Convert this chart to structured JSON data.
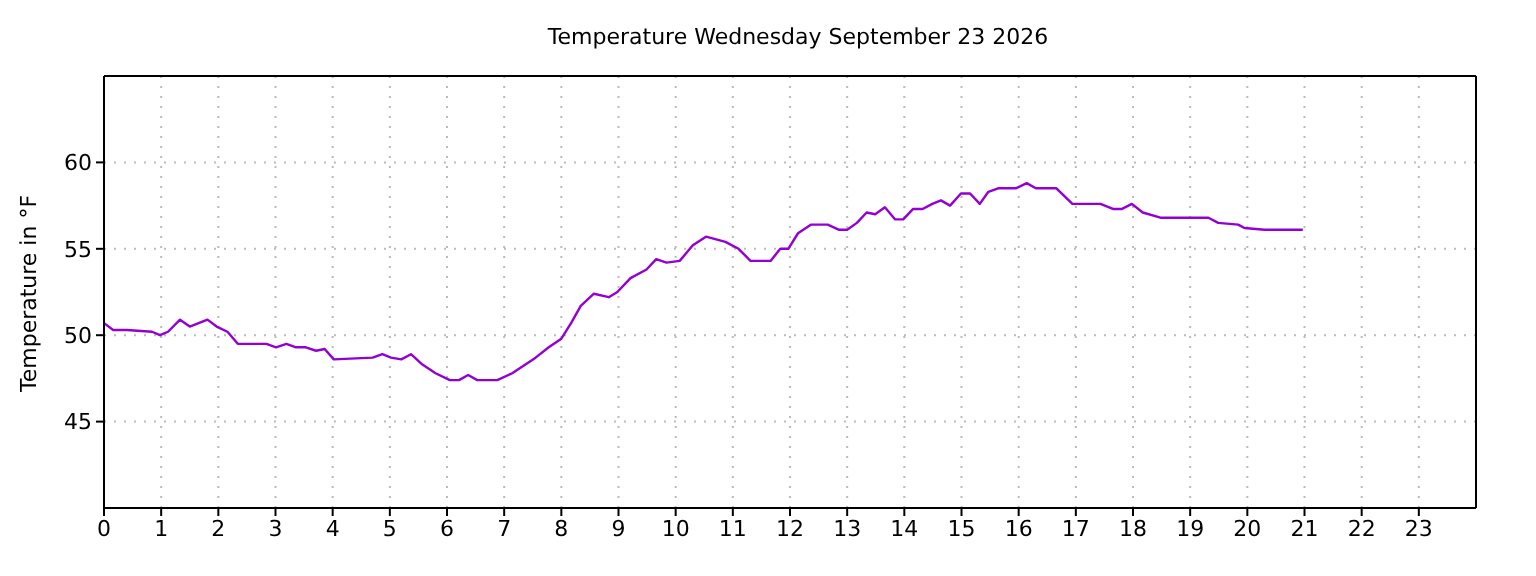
{
  "chart_data": {
    "type": "line",
    "title": "Temperature Wednesday September 23 2026",
    "ylabel": "Temperature in °F",
    "x": [
      0,
      0.16,
      0.4,
      0.84,
      0.98,
      1.12,
      1.33,
      1.5,
      1.81,
      1.97,
      2.16,
      2.34,
      2.84,
      3.01,
      3.19,
      3.36,
      3.53,
      3.71,
      3.86,
      4.02,
      4.7,
      4.87,
      5.02,
      5.2,
      5.37,
      5.57,
      5.8,
      6.05,
      6.21,
      6.37,
      6.53,
      6.88,
      7.14,
      7.55,
      7.78,
      8.0,
      8.17,
      8.34,
      8.57,
      8.83,
      8.98,
      9.21,
      9.49,
      9.66,
      9.84,
      10.07,
      10.3,
      10.53,
      10.87,
      11.1,
      11.31,
      11.66,
      11.83,
      11.97,
      12.14,
      12.37,
      12.66,
      12.86,
      13.0,
      13.17,
      13.34,
      13.49,
      13.66,
      13.84,
      13.98,
      14.15,
      14.32,
      14.49,
      14.64,
      14.8,
      14.99,
      15.15,
      15.32,
      15.47,
      15.64,
      15.95,
      16.14,
      16.3,
      16.66,
      16.94,
      17.43,
      17.66,
      17.8,
      17.98,
      18.17,
      18.48,
      19.32,
      19.49,
      19.84,
      19.95,
      20.3,
      20.97
    ],
    "series": [
      {
        "color": "#9400d3",
        "values": [
          50.7,
          50.3,
          50.3,
          50.2,
          50.0,
          50.2,
          50.9,
          50.5,
          50.9,
          50.5,
          50.2,
          49.5,
          49.5,
          49.3,
          49.5,
          49.3,
          49.3,
          49.1,
          49.2,
          48.6,
          48.7,
          48.9,
          48.7,
          48.6,
          48.9,
          48.3,
          47.8,
          47.4,
          47.4,
          47.7,
          47.4,
          47.4,
          47.8,
          48.7,
          49.3,
          49.8,
          50.7,
          51.7,
          52.4,
          52.2,
          52.5,
          53.3,
          53.8,
          54.4,
          54.2,
          54.3,
          55.2,
          55.7,
          55.4,
          55.0,
          54.3,
          54.3,
          55.0,
          55.0,
          55.9,
          56.4,
          56.4,
          56.1,
          56.1,
          56.5,
          57.1,
          57.0,
          57.4,
          56.7,
          56.7,
          57.3,
          57.3,
          57.6,
          57.8,
          57.5,
          58.2,
          58.2,
          57.6,
          58.3,
          58.5,
          58.5,
          58.8,
          58.5,
          58.5,
          57.6,
          57.6,
          57.3,
          57.3,
          57.6,
          57.1,
          56.8,
          56.8,
          56.5,
          56.4,
          56.2,
          56.1,
          56.1
        ]
      }
    ],
    "xlim": [
      0,
      24
    ],
    "xticks": [
      0,
      1,
      2,
      3,
      4,
      5,
      6,
      7,
      8,
      9,
      10,
      11,
      12,
      13,
      14,
      15,
      16,
      17,
      18,
      19,
      20,
      21,
      22,
      23
    ],
    "ylim": [
      40,
      65
    ],
    "yticks": [
      45,
      50,
      55,
      60
    ],
    "grid": true
  }
}
